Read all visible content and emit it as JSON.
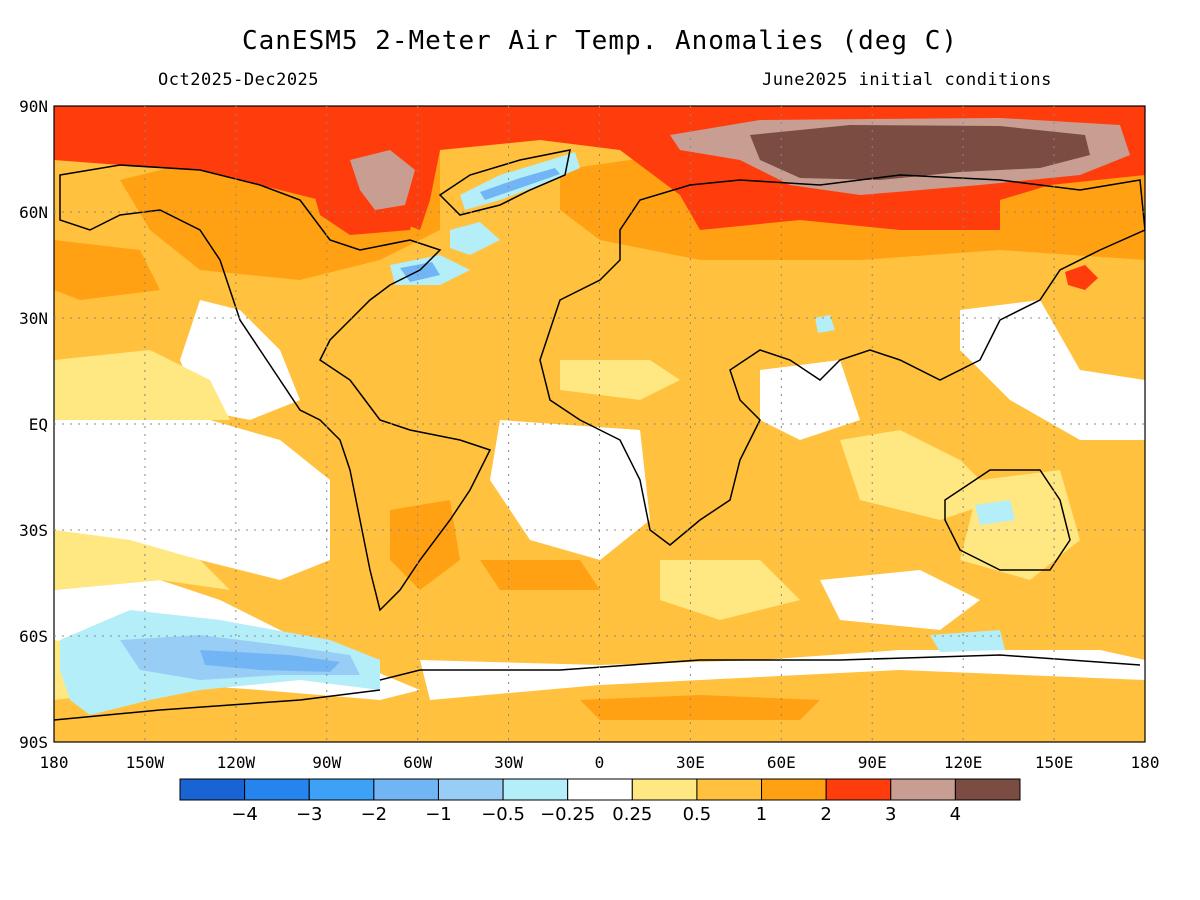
{
  "title": "CanESM5 2-Meter Air Temp. Anomalies (deg C)",
  "period": "Oct2025-Dec2025",
  "init": "June2025 initial conditions",
  "lat_labels": [
    "90N",
    "60N",
    "30N",
    "EQ",
    "30S",
    "60S",
    "90S"
  ],
  "lon_labels": [
    "180",
    "150W",
    "120W",
    "90W",
    "60W",
    "30W",
    "0",
    "30E",
    "60E",
    "90E",
    "120E",
    "150E",
    "180"
  ],
  "colorbar": {
    "colors": [
      "#1764d2",
      "#2684ee",
      "#3da2f6",
      "#72b5f5",
      "#98cef6",
      "#b4eef8",
      "#ffffff",
      "#ffe782",
      "#ffc13e",
      "#ffa112",
      "#ff3d0c",
      "#c89e93",
      "#7a4c42"
    ],
    "labels": [
      "-4",
      "-3",
      "-2",
      "-1",
      "-0.5",
      "-0.25",
      "0.25",
      "0.5",
      "1",
      "2",
      "3",
      "4"
    ]
  }
}
